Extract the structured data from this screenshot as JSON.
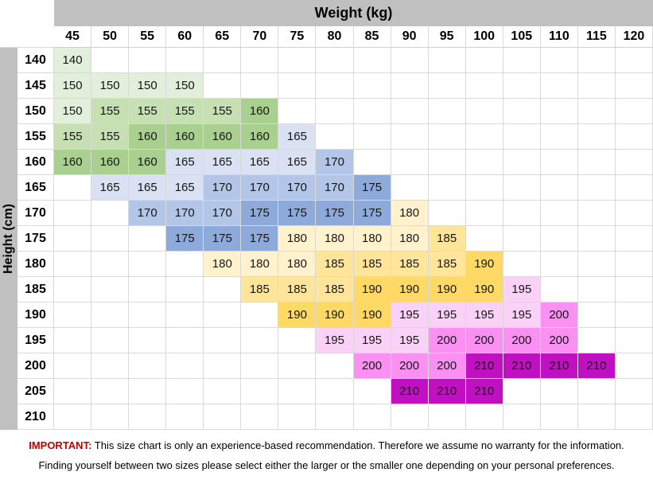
{
  "chart_data": {
    "type": "heatmap",
    "xlabel": "Weight (kg)",
    "ylabel": "Height (cm)",
    "x_categories": [
      45,
      50,
      55,
      60,
      65,
      70,
      75,
      80,
      85,
      90,
      95,
      100,
      105,
      110,
      115,
      120
    ],
    "y_categories": [
      140,
      145,
      150,
      155,
      160,
      165,
      170,
      175,
      180,
      185,
      190,
      195,
      200,
      205,
      210
    ],
    "matrix": [
      [
        140,
        null,
        null,
        null,
        null,
        null,
        null,
        null,
        null,
        null,
        null,
        null,
        null,
        null,
        null,
        null
      ],
      [
        150,
        150,
        150,
        150,
        null,
        null,
        null,
        null,
        null,
        null,
        null,
        null,
        null,
        null,
        null,
        null
      ],
      [
        150,
        155,
        155,
        155,
        155,
        160,
        null,
        null,
        null,
        null,
        null,
        null,
        null,
        null,
        null,
        null
      ],
      [
        155,
        155,
        160,
        160,
        160,
        160,
        165,
        null,
        null,
        null,
        null,
        null,
        null,
        null,
        null,
        null
      ],
      [
        160,
        160,
        160,
        165,
        165,
        165,
        165,
        170,
        null,
        null,
        null,
        null,
        null,
        null,
        null,
        null
      ],
      [
        null,
        165,
        165,
        165,
        170,
        170,
        170,
        170,
        175,
        null,
        null,
        null,
        null,
        null,
        null,
        null
      ],
      [
        null,
        null,
        170,
        170,
        170,
        175,
        175,
        175,
        175,
        180,
        null,
        null,
        null,
        null,
        null,
        null
      ],
      [
        null,
        null,
        null,
        175,
        175,
        175,
        180,
        180,
        180,
        180,
        185,
        null,
        null,
        null,
        null,
        null
      ],
      [
        null,
        null,
        null,
        null,
        180,
        180,
        180,
        185,
        185,
        185,
        185,
        190,
        null,
        null,
        null,
        null
      ],
      [
        null,
        null,
        null,
        null,
        null,
        185,
        185,
        185,
        190,
        190,
        190,
        190,
        195,
        null,
        null,
        null
      ],
      [
        null,
        null,
        null,
        null,
        null,
        null,
        190,
        190,
        190,
        195,
        195,
        195,
        195,
        200,
        null,
        null
      ],
      [
        null,
        null,
        null,
        null,
        null,
        null,
        null,
        195,
        195,
        195,
        200,
        200,
        200,
        200,
        null,
        null
      ],
      [
        null,
        null,
        null,
        null,
        null,
        null,
        null,
        null,
        200,
        200,
        200,
        210,
        210,
        210,
        210,
        null
      ],
      [
        null,
        null,
        null,
        null,
        null,
        null,
        null,
        null,
        null,
        210,
        210,
        210,
        null,
        null,
        null,
        null
      ],
      [
        null,
        null,
        null,
        null,
        null,
        null,
        null,
        null,
        null,
        null,
        null,
        null,
        null,
        null,
        null,
        null
      ]
    ],
    "value_colors": {
      "140": "#E2EFDA",
      "150": "#E2EFDA",
      "155": "#C6E0B4",
      "160": "#A9D08E",
      "165": "#D9E1F2",
      "170": "#B4C6E7",
      "175": "#8EAADB",
      "180": "#FFF2CC",
      "185": "#FFE599",
      "190": "#FFD966",
      "195": "#FBD2F7",
      "200": "#F990F2",
      "210": "#C110C1"
    },
    "legend_position": "none",
    "grid": true
  },
  "chrome": {
    "header_bg": "#C0C0C0",
    "grid_line": "#D9D9D9"
  },
  "footer": {
    "important_label": "IMPORTANT:",
    "important_color": "#C00000",
    "line1": "This size chart is only an experience-based recommendation. Therefore we assume no warranty for the information.",
    "line2": "Finding yourself between two sizes please select either the larger or the smaller one depending on your personal preferences."
  }
}
